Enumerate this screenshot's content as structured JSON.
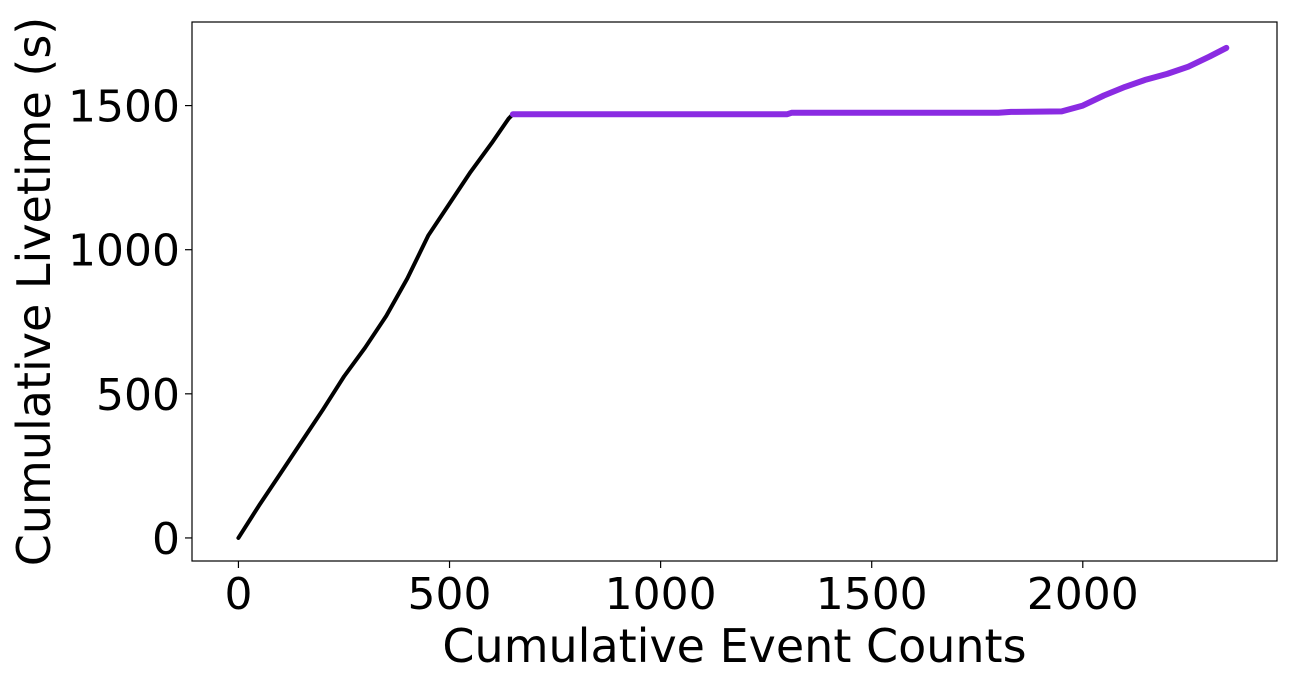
{
  "chart_data": {
    "type": "line",
    "title": "",
    "xlabel": "Cumulative Event Counts",
    "ylabel": "Cumulative Livetime (s)",
    "xlim": [
      -110,
      2460
    ],
    "ylim": [
      -80,
      1790
    ],
    "xticks": [
      0,
      500,
      1000,
      1500,
      2000
    ],
    "yticks": [
      0,
      500,
      1000,
      1500
    ],
    "grid": false,
    "legend": "none",
    "series": [
      {
        "color": "#000000",
        "x": [
          0,
          50,
          100,
          150,
          200,
          250,
          300,
          350,
          400,
          450,
          500,
          550,
          600,
          640,
          650
        ],
        "y": [
          0,
          115,
          225,
          335,
          445,
          560,
          660,
          770,
          900,
          1050,
          1160,
          1270,
          1370,
          1455,
          1470
        ]
      },
      {
        "color": "#8a2be2",
        "x": [
          650,
          900,
          1300,
          1310,
          1800,
          1830,
          1950,
          2000,
          2050,
          2100,
          2150,
          2200,
          2250,
          2300,
          2340
        ],
        "y": [
          1470,
          1470,
          1470,
          1475,
          1475,
          1478,
          1480,
          1500,
          1535,
          1565,
          1590,
          1610,
          1635,
          1670,
          1700
        ]
      }
    ]
  }
}
